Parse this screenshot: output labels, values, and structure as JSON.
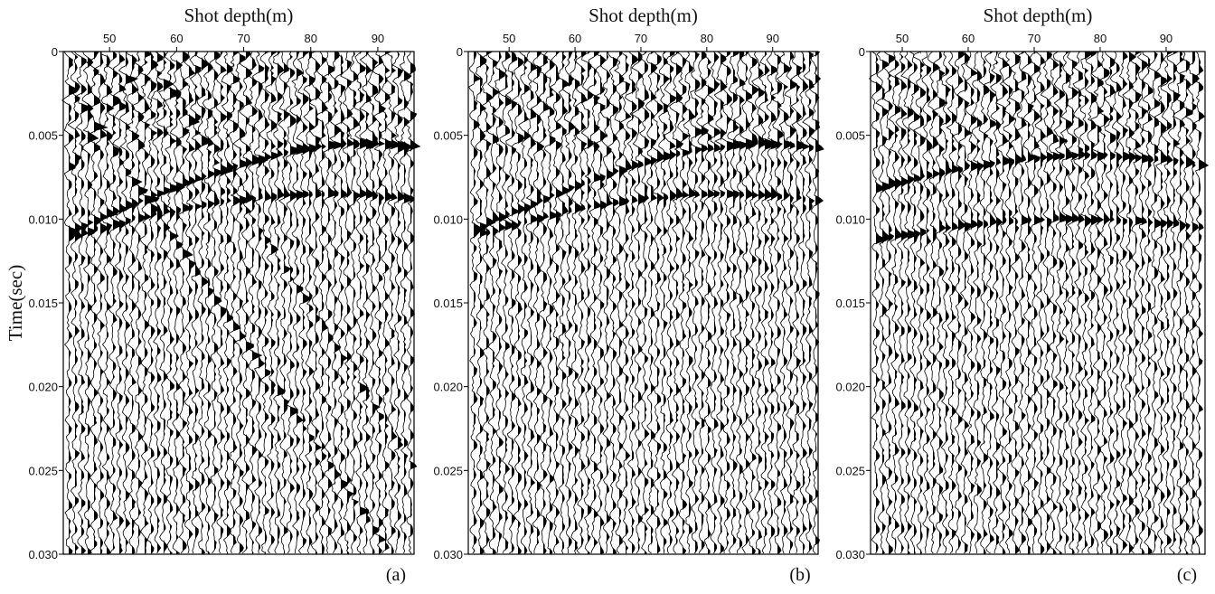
{
  "chart_data": [
    {
      "type": "wiggle",
      "xlabel": "Shot depth(m)",
      "ylabel": "Time(sec)",
      "panel_label": "(a)",
      "xlim": [
        43.1,
        95.4
      ],
      "xticks": [
        50,
        60,
        70,
        80,
        90
      ],
      "ylim": [
        0,
        0.03
      ],
      "yticks": [
        0,
        0.005,
        {
          "value": 0.01,
          "label": "0.010"
        },
        0.015,
        {
          "value": 0.02,
          "label": "0.020"
        },
        0.025,
        {
          "value": 0.03,
          "label": "0.030"
        }
      ]
    },
    {
      "type": "wiggle",
      "xlabel": "Shot depth(m)",
      "panel_label": "(b)",
      "xlim": [
        43.8,
        96.9
      ],
      "xticks": [
        50,
        60,
        70,
        80,
        90
      ],
      "ylim": [
        0,
        0.03
      ],
      "yticks": [
        0,
        0.005,
        {
          "value": 0.01,
          "label": "0.010"
        },
        0.015,
        {
          "value": 0.02,
          "label": "0.020"
        },
        0.025,
        {
          "value": 0.03,
          "label": "0.030"
        }
      ]
    },
    {
      "type": "wiggle",
      "xlabel": "Shot depth(m)",
      "panel_label": "(c)",
      "xlim": [
        45.2,
        95.9
      ],
      "xticks": [
        50,
        60,
        70,
        80,
        90
      ],
      "ylim": [
        0,
        0.03
      ],
      "yticks": [
        0,
        0.005,
        {
          "value": 0.01,
          "label": "0.010"
        },
        0.015,
        {
          "value": 0.02,
          "label": "0.020"
        },
        0.025,
        {
          "value": 0.03,
          "label": "0.030"
        }
      ]
    }
  ]
}
